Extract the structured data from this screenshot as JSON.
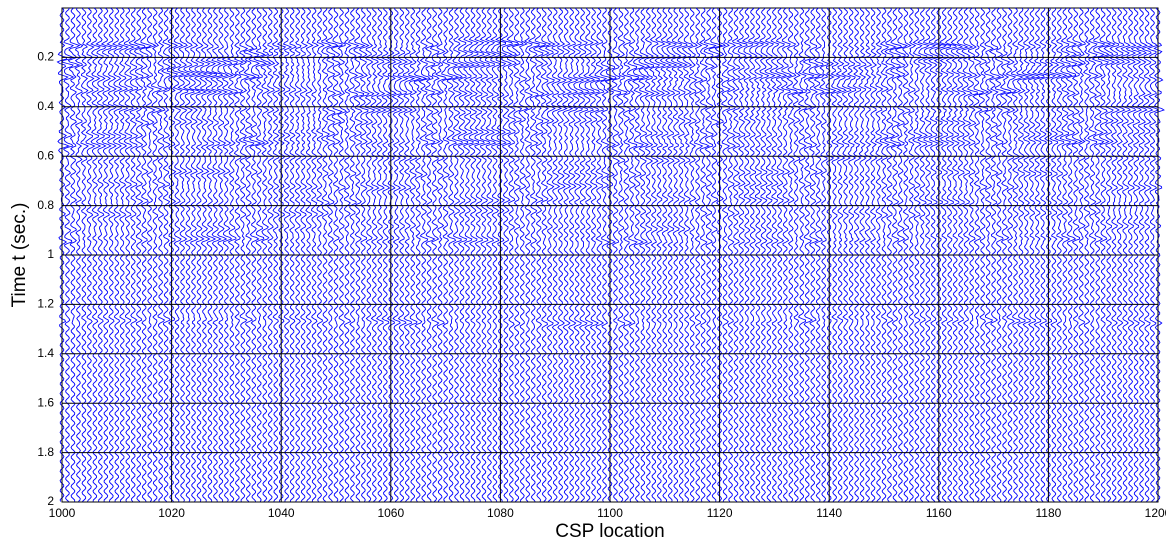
{
  "chart_data": {
    "type": "wiggle",
    "xlabel": "CSP location",
    "ylabel": "Time  t  (sec.)",
    "xlim": [
      1000,
      1200
    ],
    "ylim": [
      0,
      2
    ],
    "y_reversed": true,
    "xticks": [
      1000,
      1020,
      1040,
      1060,
      1080,
      1100,
      1120,
      1140,
      1160,
      1180,
      1200
    ],
    "yticks": [
      0.2,
      0.4,
      0.6,
      0.8,
      1,
      1.2,
      1.4,
      1.6,
      1.8,
      2
    ],
    "grid": true,
    "color": "#0000ff",
    "trace_spacing": 1,
    "reflector_times": [
      0.15,
      0.19,
      0.23,
      0.28,
      0.34,
      0.41,
      0.46,
      0.51,
      0.55,
      0.61,
      0.67,
      0.72,
      0.78,
      0.83,
      0.89,
      0.94,
      1.27
    ],
    "reflector_amplitudes": [
      1.0,
      0.7,
      0.8,
      1.0,
      0.9,
      0.7,
      0.5,
      0.5,
      0.8,
      0.4,
      0.4,
      0.4,
      0.4,
      0.3,
      0.3,
      0.6,
      0.5
    ]
  }
}
